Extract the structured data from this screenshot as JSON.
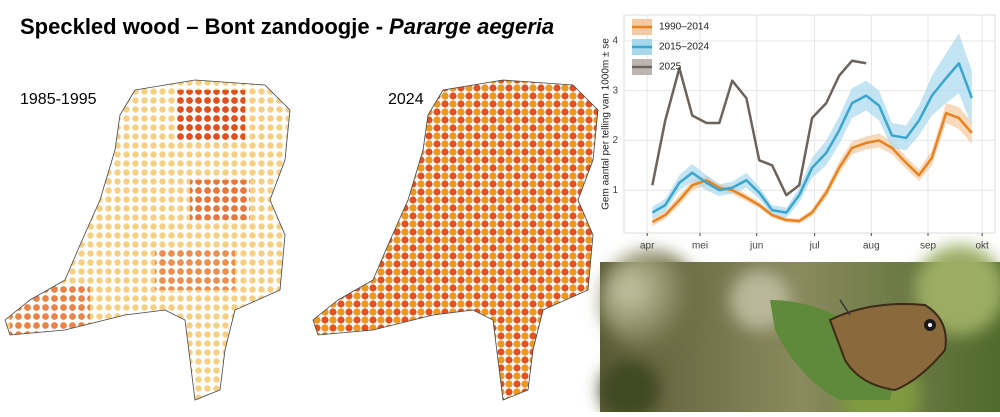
{
  "title": {
    "main": "Speckled wood – Bont zandoogje -",
    "species": "Pararge aegeria"
  },
  "maps": [
    {
      "label": "1985-1995"
    },
    {
      "label": "2024"
    }
  ],
  "chart_data": {
    "type": "line",
    "y_label": "Gem aantal per telling van 1000m ± se",
    "x": [
      0.4,
      1.4,
      2.5,
      3.5,
      4.6,
      5.6,
      6.6,
      7.7,
      8.7,
      9.7,
      10.8,
      11.8,
      12.8,
      13.9,
      14.9,
      15.9,
      17,
      18,
      19,
      20.1,
      21.1,
      22.1,
      23.2,
      24.2,
      25.2
    ],
    "series": [
      {
        "name": "1990–2014",
        "color": "#e8821e",
        "band_color": "#f6c9a0",
        "values": [
          0.36,
          0.5,
          0.8,
          1.1,
          1.2,
          1.05,
          1.0,
          0.85,
          0.7,
          0.5,
          0.4,
          0.38,
          0.55,
          0.95,
          1.45,
          1.85,
          1.95,
          2.0,
          1.85,
          1.55,
          1.3,
          1.65,
          2.55,
          2.45,
          2.15
        ],
        "se": [
          0.08,
          0.08,
          0.1,
          0.1,
          0.1,
          0.08,
          0.08,
          0.07,
          0.06,
          0.05,
          0.05,
          0.05,
          0.07,
          0.1,
          0.12,
          0.13,
          0.13,
          0.14,
          0.13,
          0.12,
          0.12,
          0.15,
          0.2,
          0.22,
          0.22
        ]
      },
      {
        "name": "2015–2024",
        "color": "#3aa6d0",
        "band_color": "#a9d8ec",
        "values": [
          0.55,
          0.7,
          1.15,
          1.35,
          1.15,
          1.0,
          1.05,
          1.2,
          0.95,
          0.6,
          0.55,
          0.9,
          1.45,
          1.75,
          2.2,
          2.75,
          2.9,
          2.7,
          2.1,
          2.05,
          2.4,
          2.9,
          3.25,
          3.55,
          2.85
        ],
        "se": [
          0.12,
          0.12,
          0.15,
          0.18,
          0.15,
          0.12,
          0.12,
          0.15,
          0.12,
          0.1,
          0.1,
          0.15,
          0.2,
          0.25,
          0.28,
          0.3,
          0.3,
          0.3,
          0.25,
          0.25,
          0.3,
          0.4,
          0.5,
          0.6,
          0.55
        ]
      },
      {
        "name": "2025",
        "color": "#6e635b",
        "band_color": "#bdb6b0",
        "values": [
          1.1,
          2.4,
          3.45,
          2.5,
          2.35,
          2.35,
          3.2,
          2.85,
          1.6,
          1.5,
          0.9,
          1.1,
          2.45,
          2.75,
          3.3,
          3.6,
          3.55,
          null,
          null,
          null,
          null,
          null,
          null,
          null,
          null
        ]
      }
    ],
    "xlim": [
      -1.8,
      27
    ],
    "xticks": [
      {
        "value": 0,
        "label": "apr"
      },
      {
        "value": 4.1,
        "label": "mei"
      },
      {
        "value": 8.5,
        "label": "jun"
      },
      {
        "value": 13,
        "label": "jul"
      },
      {
        "value": 17.4,
        "label": "aug"
      },
      {
        "value": 21.8,
        "label": "sep"
      },
      {
        "value": 26,
        "label": "okt"
      }
    ],
    "ylim": [
      0.14,
      4.52
    ],
    "yticks": [
      1,
      2,
      3,
      4
    ],
    "grid": true,
    "legend": "top-left"
  }
}
